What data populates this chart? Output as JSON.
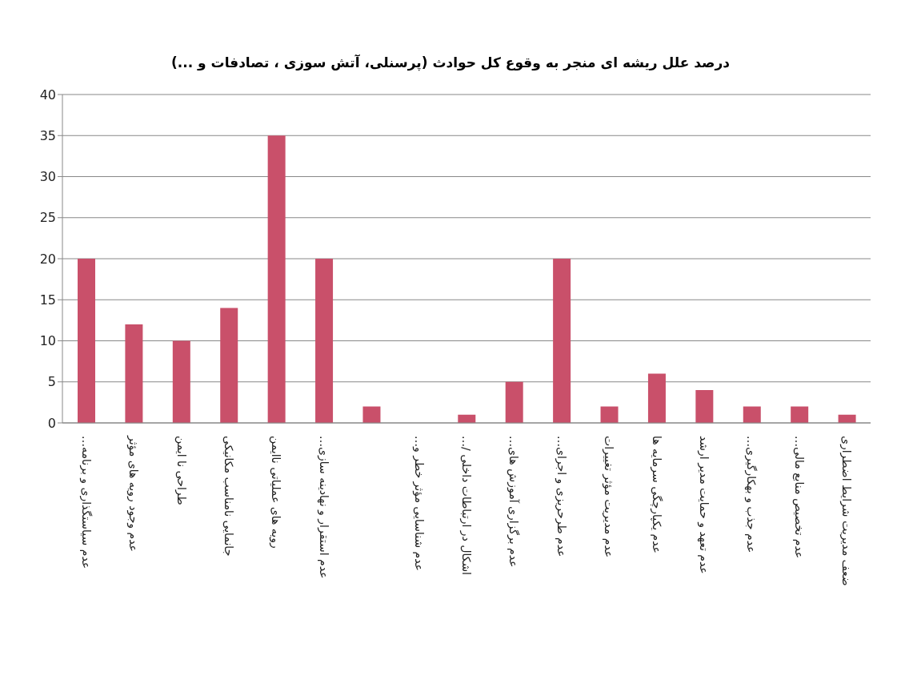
{
  "chart_data": {
    "type": "bar",
    "title": "درصد علل ریشه ای منجر به وقوع کل حوادث (پرسنلی، آتش سوزی ، تصادفات و ...)",
    "categories": [
      "عدم سیاستگذاری و برنامه…",
      "عدم وجود رویه های مؤثر",
      "طراحی نا ایمن",
      "جانمایی نامناسب مکانیکی",
      "رویه های عملیاتی ناایمن",
      "عدم استقرار و نهادینه سازی…",
      null,
      "عدم شناسایی مؤثر خطر و…",
      "اشکال در ارتباطات داخلی /…",
      "عدم برگزاری آموزش های…",
      "عدم طرحریزی و اجرای…",
      "عدم مدیریت مؤثر تغییرات",
      "عدم یکپارچگی سرمایه ها",
      "عدم تعهد و حمایت مدیر ارشد",
      "عدم جذب و بهکارگیری…",
      "عدم تخصیص منابع مالی…",
      "ضعف مدیریت شرایط اضطراری"
    ],
    "values": [
      20,
      12,
      10,
      14,
      35,
      20,
      2,
      0,
      1,
      5,
      20,
      2,
      6,
      4,
      2,
      2,
      1
    ],
    "color": "#c9506a",
    "ylim": [
      0,
      40
    ],
    "yticks": [
      0,
      5,
      10,
      15,
      20,
      25,
      30,
      35,
      40
    ],
    "grid": "y"
  }
}
